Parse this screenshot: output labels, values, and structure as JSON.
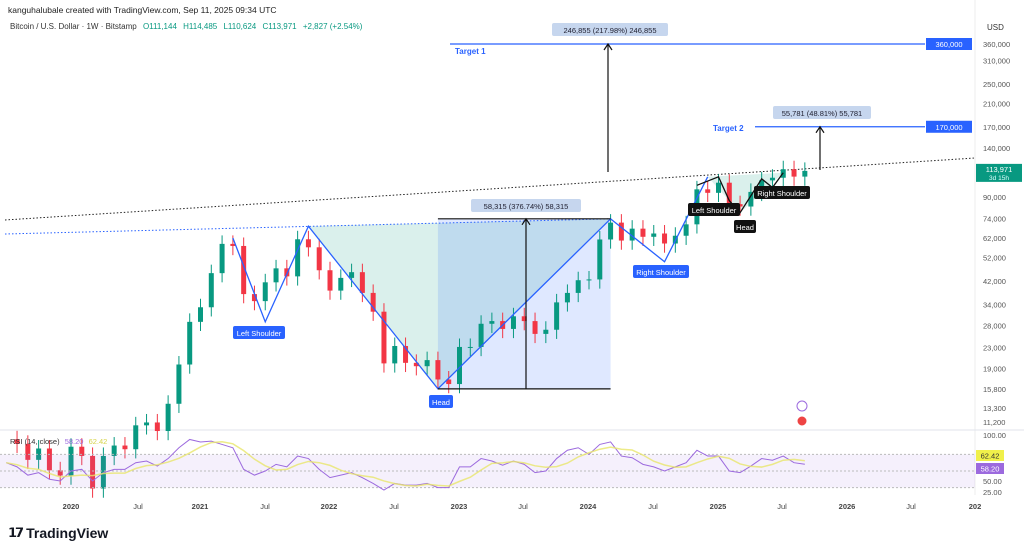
{
  "header": {
    "created": "kanguhalubale created with TradingView.com, Sep 11, 2025 09:34 UTC"
  },
  "legend": {
    "symbol": "Bitcoin / U.S. Dollar · 1W · Bitstamp",
    "open": "O111,144",
    "high": "H114,485",
    "low": "L110,624",
    "close": "C113,971",
    "change": "+2,827 (+2.54%)"
  },
  "rsi": {
    "label": "RSI (14, close)",
    "value": "58.20",
    "ma": "62.42",
    "ticks": [
      "100.00",
      "50.00",
      "25.00"
    ],
    "badge_rsi": "58.20",
    "badge_ma": "62.42"
  },
  "footer": {
    "brand": "TradingView"
  },
  "colors": {
    "up": "#089981",
    "down": "#f23645",
    "drawing": "#2962ff",
    "rsi": "#9c6ade",
    "rsi_ma": "#e8e66a"
  },
  "chart_data": {
    "type": "candlestick",
    "scale": "log",
    "currency": "USD",
    "ylim": [
      11200,
      360000
    ],
    "y_ticks": [
      "360,000",
      "310,000",
      "250,000",
      "210,000",
      "170,000",
      "140,000",
      "90,000",
      "74,000",
      "62,000",
      "52,000",
      "42,000",
      "34,000",
      "28,000",
      "23,000",
      "19,000",
      "15,800",
      "13,300",
      "11,200"
    ],
    "x_ticks": [
      "2020",
      "Jul",
      "2021",
      "Jul",
      "2022",
      "Jul",
      "2023",
      "Jul",
      "2024",
      "Jul",
      "2025",
      "Jul",
      "2026",
      "Jul",
      "202"
    ],
    "last_price": {
      "label": "113,971",
      "countdown": "3d 15h"
    },
    "dates": [
      "2019-07",
      "2019-08",
      "2019-09",
      "2019-10",
      "2019-11",
      "2019-12",
      "2020-01",
      "2020-02",
      "2020-03",
      "2020-04",
      "2020-05",
      "2020-06",
      "2020-07",
      "2020-08",
      "2020-09",
      "2020-10",
      "2020-11",
      "2020-12",
      "2021-01",
      "2021-02",
      "2021-03",
      "2021-04",
      "2021-05",
      "2021-06",
      "2021-07",
      "2021-08",
      "2021-09",
      "2021-10",
      "2021-11",
      "2021-12",
      "2022-01",
      "2022-02",
      "2022-03",
      "2022-04",
      "2022-05",
      "2022-06",
      "2022-07",
      "2022-08",
      "2022-09",
      "2022-10",
      "2022-11",
      "2022-12",
      "2023-01",
      "2023-02",
      "2023-03",
      "2023-04",
      "2023-05",
      "2023-06",
      "2023-07",
      "2023-08",
      "2023-09",
      "2023-10",
      "2023-11",
      "2023-12",
      "2024-01",
      "2024-02",
      "2024-03",
      "2024-04",
      "2024-05",
      "2024-06",
      "2024-07",
      "2024-08",
      "2024-09",
      "2024-10",
      "2024-11",
      "2024-12",
      "2025-01",
      "2025-02",
      "2025-03",
      "2025-04",
      "2025-05",
      "2025-06",
      "2025-07",
      "2025-08",
      "2025-09"
    ],
    "close": [
      10000,
      9600,
      8300,
      9200,
      7550,
      7200,
      9350,
      8600,
      6400,
      8600,
      9450,
      9140,
      11350,
      11650,
      10780,
      13800,
      19700,
      29000,
      33100,
      45100,
      58800,
      57700,
      37300,
      35000,
      41500,
      47100,
      43800,
      61300,
      57000,
      46300,
      38500,
      43200,
      45500,
      37700,
      31800,
      19900,
      23300,
      20000,
      19400,
      20500,
      17200,
      16500,
      23100,
      23100,
      28500,
      29200,
      27200,
      30500,
      29200,
      26000,
      27000,
      34600,
      37700,
      42300,
      42600,
      61200,
      71300,
      60600,
      67500,
      62700,
      64600,
      59000,
      63300,
      70200,
      96400,
      93400,
      102400,
      84300,
      82500,
      94200,
      104600,
      107100,
      115700,
      108200,
      113971
    ],
    "rsi_values": [
      60,
      55,
      45,
      48,
      40,
      38,
      50,
      52,
      38,
      48,
      52,
      52,
      60,
      62,
      56,
      65,
      78,
      88,
      85,
      86,
      82,
      78,
      52,
      45,
      50,
      58,
      55,
      68,
      65,
      52,
      42,
      45,
      48,
      42,
      35,
      27,
      35,
      33,
      33,
      35,
      30,
      30,
      55,
      55,
      65,
      62,
      57,
      62,
      58,
      48,
      50,
      65,
      75,
      78,
      70,
      82,
      85,
      68,
      66,
      58,
      55,
      50,
      55,
      60,
      75,
      68,
      68,
      50,
      48,
      56,
      65,
      63,
      68,
      60,
      58.2
    ],
    "annotations": {
      "target1": {
        "label": "Target 1",
        "price": "360,000"
      },
      "target2": {
        "label": "Target 2",
        "price": "170,000"
      },
      "measure1": "246,855 (217.98%) 246,855",
      "measure2": "55,781 (48.81%) 55,781",
      "measure3": "58,315 (376.74%) 58,315",
      "big_left_shoulder": "Left Shoulder",
      "big_head": "Head",
      "big_right_shoulder": "Right Shoulder",
      "small_left_shoulder": "Left Shoulder",
      "small_head": "Head",
      "small_right_shoulder": "Right Shoulder"
    }
  }
}
